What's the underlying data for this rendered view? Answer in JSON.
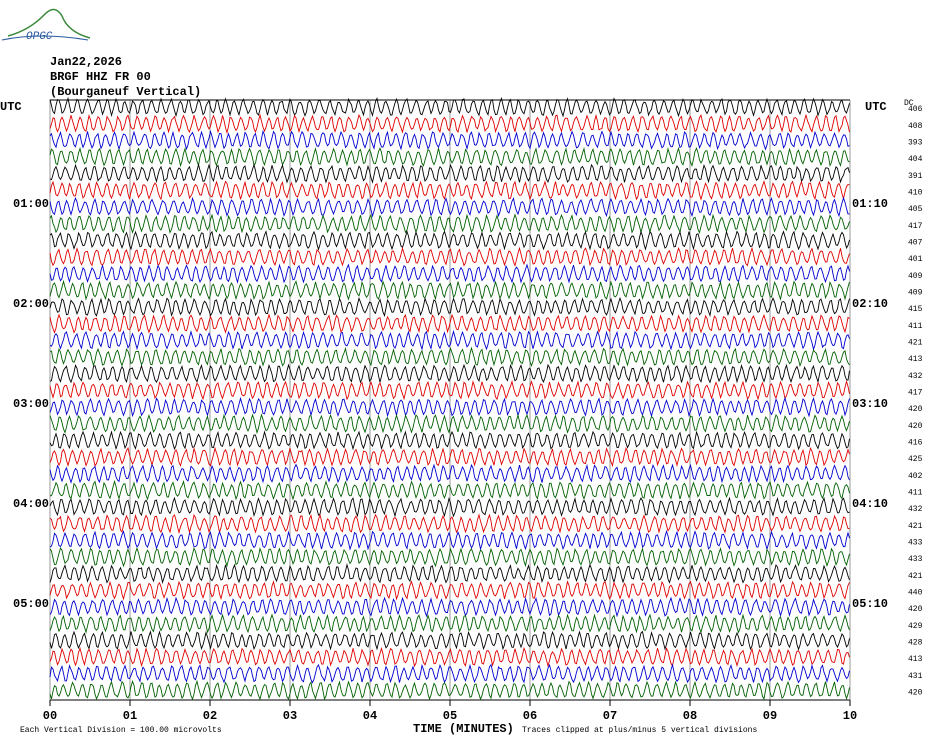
{
  "logo": "OPGC",
  "header": {
    "date": "Jan22,2026",
    "station": "BRGF HHZ FR 00",
    "location": "(Bourganeuf Vertical)"
  },
  "left_labels": [
    "UTC",
    "01:00",
    "02:00",
    "03:00",
    "04:00",
    "05:00"
  ],
  "right_labels": [
    "UTC",
    "01:10",
    "02:10",
    "03:10",
    "04:10",
    "05:10"
  ],
  "dc_label": "DC",
  "dc_values": [
    406,
    408,
    393,
    404,
    391,
    410,
    405,
    417,
    407,
    401,
    409,
    409,
    415,
    411,
    421,
    413,
    432,
    417,
    420,
    420,
    416,
    425,
    402,
    411,
    432,
    421,
    433,
    433,
    421,
    440,
    420,
    429,
    428,
    413,
    431,
    420
  ],
  "x_axis": {
    "ticks": [
      "00",
      "01",
      "02",
      "03",
      "04",
      "05",
      "06",
      "07",
      "08",
      "09",
      "10"
    ],
    "title": "TIME (MINUTES)"
  },
  "footer": {
    "scale": "Each Vertical Division =  100.00 microvolts",
    "clip": "Traces clipped at plus/minus 5 vertical divisions"
  }
}
